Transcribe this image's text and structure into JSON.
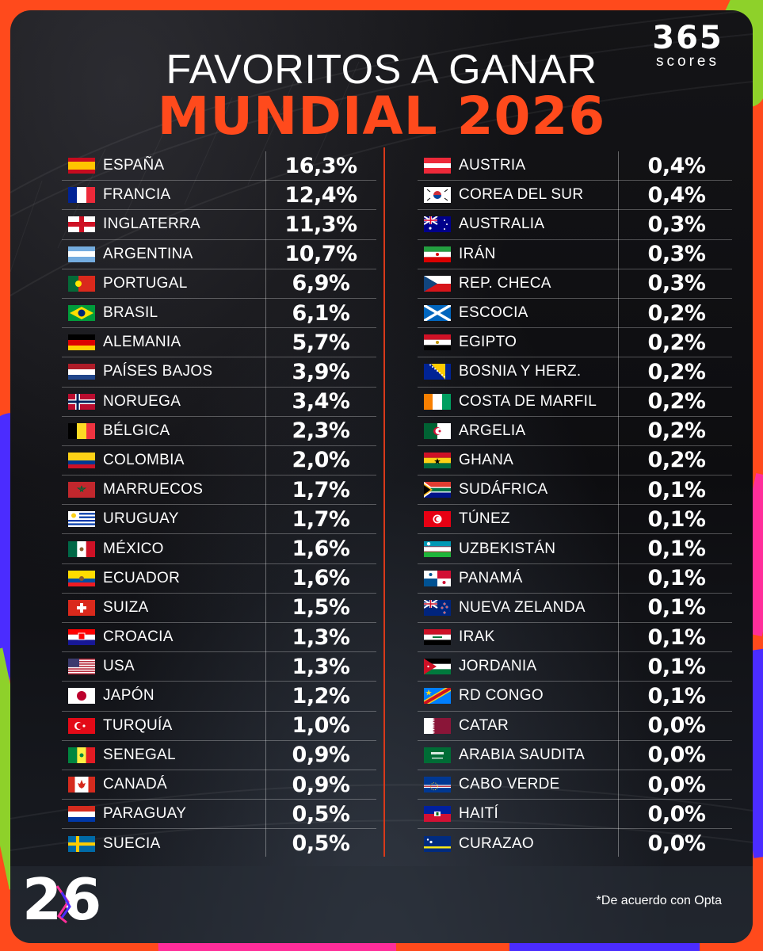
{
  "header": {
    "brand_number": "365",
    "brand_word": "scores",
    "title_line1": "FAVORITOS A GANAR",
    "title_line2": "MUNDIAL 2026"
  },
  "colors": {
    "accent": "#ff4a1c",
    "background": "#0d0d10",
    "text": "#ffffff"
  },
  "left_column": [
    {
      "country": "ESPAÑA",
      "pct": "16,3%",
      "flag": "spain-flag-icon"
    },
    {
      "country": "FRANCIA",
      "pct": "12,4%",
      "flag": "france-flag-icon"
    },
    {
      "country": "INGLATERRA",
      "pct": "11,3%",
      "flag": "england-flag-icon"
    },
    {
      "country": "ARGENTINA",
      "pct": "10,7%",
      "flag": "argentina-flag-icon"
    },
    {
      "country": "PORTUGAL",
      "pct": "6,9%",
      "flag": "portugal-flag-icon"
    },
    {
      "country": "BRASIL",
      "pct": "6,1%",
      "flag": "brazil-flag-icon"
    },
    {
      "country": "ALEMANIA",
      "pct": "5,7%",
      "flag": "germany-flag-icon"
    },
    {
      "country": "PAÍSES BAJOS",
      "pct": "3,9%",
      "flag": "netherlands-flag-icon"
    },
    {
      "country": "NORUEGA",
      "pct": "3,4%",
      "flag": "norway-flag-icon"
    },
    {
      "country": "BÉLGICA",
      "pct": "2,3%",
      "flag": "belgium-flag-icon"
    },
    {
      "country": "COLOMBIA",
      "pct": "2,0%",
      "flag": "colombia-flag-icon"
    },
    {
      "country": "MARRUECOS",
      "pct": "1,7%",
      "flag": "morocco-flag-icon"
    },
    {
      "country": "URUGUAY",
      "pct": "1,7%",
      "flag": "uruguay-flag-icon"
    },
    {
      "country": "MÉXICO",
      "pct": "1,6%",
      "flag": "mexico-flag-icon"
    },
    {
      "country": "ECUADOR",
      "pct": "1,6%",
      "flag": "ecuador-flag-icon"
    },
    {
      "country": "SUIZA",
      "pct": "1,5%",
      "flag": "switzerland-flag-icon"
    },
    {
      "country": "CROACIA",
      "pct": "1,3%",
      "flag": "croatia-flag-icon"
    },
    {
      "country": "USA",
      "pct": "1,3%",
      "flag": "usa-flag-icon"
    },
    {
      "country": "JAPÓN",
      "pct": "1,2%",
      "flag": "japan-flag-icon"
    },
    {
      "country": "TURQUÍA",
      "pct": "1,0%",
      "flag": "turkey-flag-icon"
    },
    {
      "country": "SENEGAL",
      "pct": "0,9%",
      "flag": "senegal-flag-icon"
    },
    {
      "country": "CANADÁ",
      "pct": "0,9%",
      "flag": "canada-flag-icon"
    },
    {
      "country": "PARAGUAY",
      "pct": "0,5%",
      "flag": "paraguay-flag-icon"
    },
    {
      "country": "SUECIA",
      "pct": "0,5%",
      "flag": "sweden-flag-icon"
    }
  ],
  "right_column": [
    {
      "country": "AUSTRIA",
      "pct": "0,4%",
      "flag": "austria-flag-icon"
    },
    {
      "country": "COREA DEL SUR",
      "pct": "0,4%",
      "flag": "south-korea-flag-icon"
    },
    {
      "country": "AUSTRALIA",
      "pct": "0,3%",
      "flag": "australia-flag-icon"
    },
    {
      "country": "IRÁN",
      "pct": "0,3%",
      "flag": "iran-flag-icon"
    },
    {
      "country": "REP. CHECA",
      "pct": "0,3%",
      "flag": "czechia-flag-icon"
    },
    {
      "country": "ESCOCIA",
      "pct": "0,2%",
      "flag": "scotland-flag-icon"
    },
    {
      "country": "EGIPTO",
      "pct": "0,2%",
      "flag": "egypt-flag-icon"
    },
    {
      "country": "BOSNIA Y HERZ.",
      "pct": "0,2%",
      "flag": "bosnia-flag-icon"
    },
    {
      "country": "COSTA DE MARFIL",
      "pct": "0,2%",
      "flag": "ivory-coast-flag-icon"
    },
    {
      "country": "ARGELIA",
      "pct": "0,2%",
      "flag": "algeria-flag-icon"
    },
    {
      "country": "GHANA",
      "pct": "0,2%",
      "flag": "ghana-flag-icon"
    },
    {
      "country": "SUDÁFRICA",
      "pct": "0,1%",
      "flag": "south-africa-flag-icon"
    },
    {
      "country": "TÚNEZ",
      "pct": "0,1%",
      "flag": "tunisia-flag-icon"
    },
    {
      "country": "UZBEKISTÁN",
      "pct": "0,1%",
      "flag": "uzbekistan-flag-icon"
    },
    {
      "country": "PANAMÁ",
      "pct": "0,1%",
      "flag": "panama-flag-icon"
    },
    {
      "country": "NUEVA ZELANDA",
      "pct": "0,1%",
      "flag": "new-zealand-flag-icon"
    },
    {
      "country": "IRAK",
      "pct": "0,1%",
      "flag": "iraq-flag-icon"
    },
    {
      "country": "JORDANIA",
      "pct": "0,1%",
      "flag": "jordan-flag-icon"
    },
    {
      "country": "RD CONGO",
      "pct": "0,1%",
      "flag": "dr-congo-flag-icon"
    },
    {
      "country": "CATAR",
      "pct": "0,0%",
      "flag": "qatar-flag-icon"
    },
    {
      "country": "ARABIA SAUDITA",
      "pct": "0,0%",
      "flag": "saudi-arabia-flag-icon"
    },
    {
      "country": "CABO VERDE",
      "pct": "0,0%",
      "flag": "cape-verde-flag-icon"
    },
    {
      "country": "HAITÍ",
      "pct": "0,0%",
      "flag": "haiti-flag-icon"
    },
    {
      "country": "CURAZAO",
      "pct": "0,0%",
      "flag": "curacao-flag-icon"
    }
  ],
  "footer": {
    "event_logo": "26",
    "footnote": "*De acuerdo con Opta"
  }
}
